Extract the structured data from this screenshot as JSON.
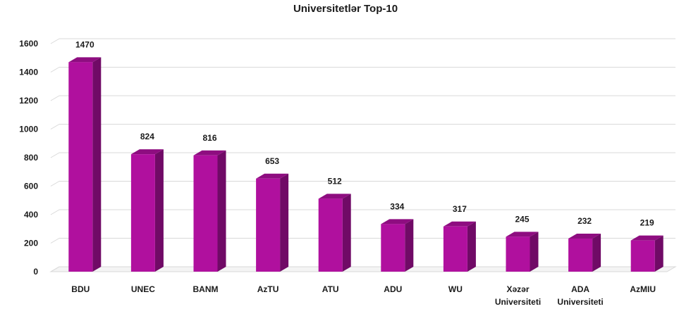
{
  "chart_data": {
    "type": "bar",
    "title": "Universitetlər  Top-10",
    "xlabel": "",
    "ylabel": "",
    "ylim": [
      0,
      1600
    ],
    "yticks": [
      0,
      200,
      400,
      600,
      800,
      1000,
      1200,
      1400,
      1600
    ],
    "grid": true,
    "legend": "none",
    "categories": [
      [
        "BDU"
      ],
      [
        "UNEC"
      ],
      [
        "BANM"
      ],
      [
        "AzTU"
      ],
      [
        "ATU"
      ],
      [
        "ADU"
      ],
      [
        "WU"
      ],
      [
        "Xəzər",
        "Universiteti"
      ],
      [
        "ADA",
        "Universiteti"
      ],
      [
        "AzMIU"
      ]
    ],
    "values": [
      1470,
      824,
      816,
      653,
      512,
      334,
      317,
      245,
      232,
      219
    ],
    "colors": {
      "front": "#b0109e",
      "side": "#700a66",
      "top": "#8e0d80",
      "grid": "#d9d9d9"
    }
  }
}
